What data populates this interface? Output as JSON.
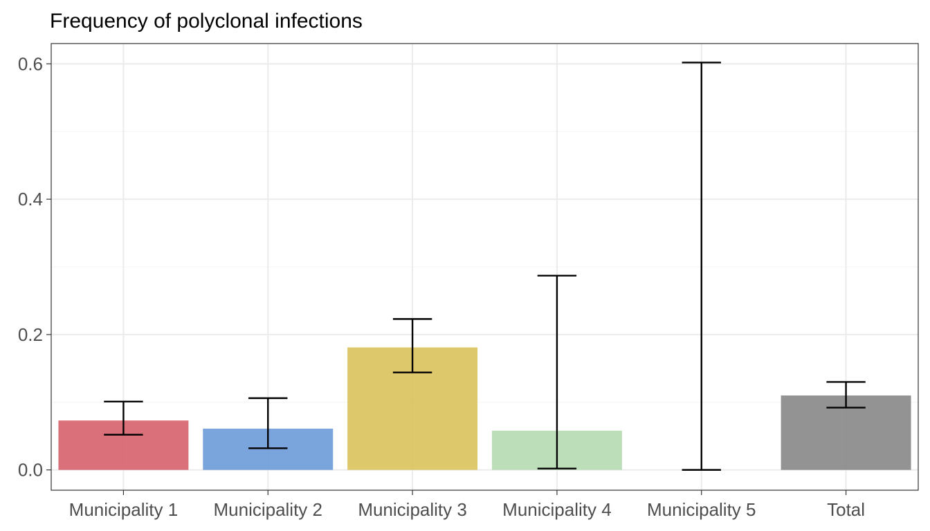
{
  "chart_data": {
    "type": "bar",
    "title": "Frequency of polyclonal infections",
    "xlabel": "",
    "ylabel": "",
    "categories": [
      "Municipality 1",
      "Municipality 2",
      "Municipality 3",
      "Municipality 4",
      "Municipality 5",
      "Total"
    ],
    "values": [
      0.073,
      0.061,
      0.181,
      0.058,
      0.0,
      0.11
    ],
    "error_low": [
      0.052,
      0.032,
      0.144,
      0.002,
      0.0,
      0.092
    ],
    "error_high": [
      0.101,
      0.106,
      0.223,
      0.287,
      0.602,
      0.13
    ],
    "colors": [
      "#d6616b",
      "#6b9bd8",
      "#d9c25c",
      "#b5dbb2",
      "#999999",
      "#878787"
    ],
    "ylim": [
      -0.03,
      0.63
    ],
    "yticks": [
      0.0,
      0.2,
      0.4,
      0.6
    ],
    "ytick_labels": [
      "0.0",
      "0.2",
      "0.4",
      "0.6"
    ],
    "grid": true,
    "legend": "none"
  }
}
